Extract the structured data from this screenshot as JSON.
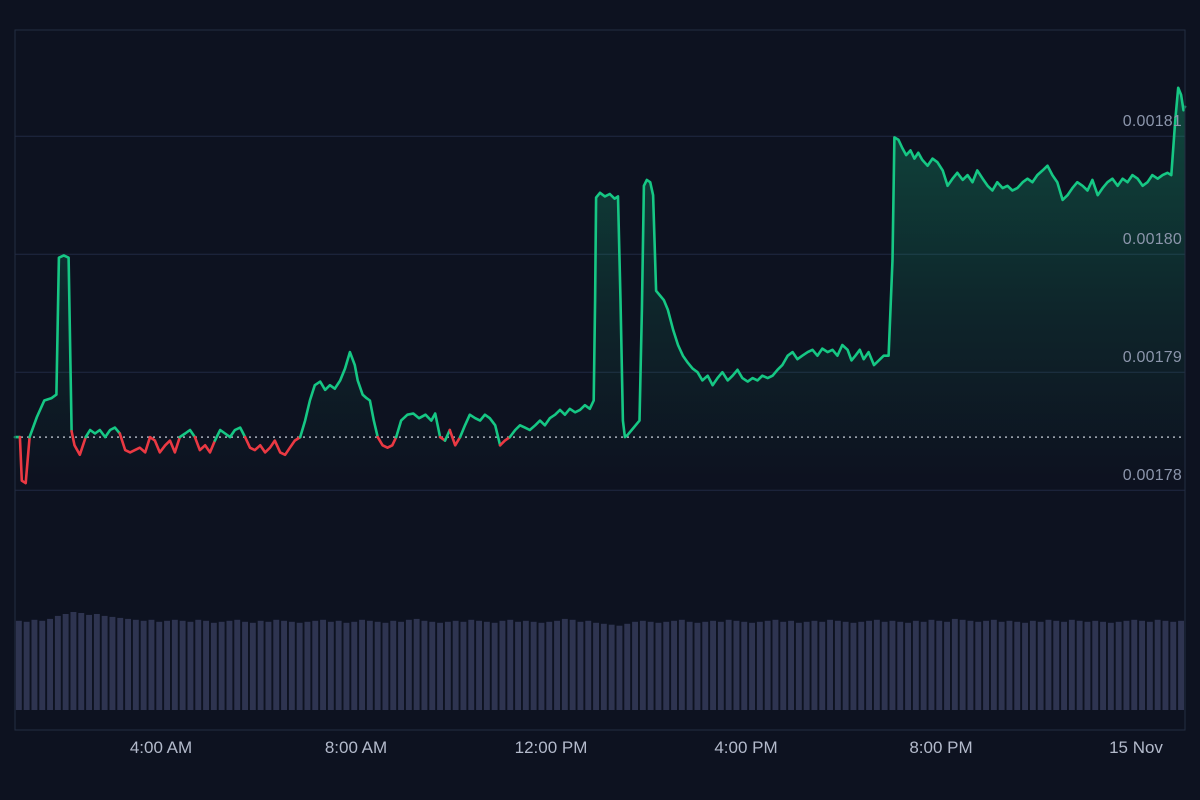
{
  "chart_data": {
    "type": "line",
    "subtype": "crypto-price-with-volume",
    "title": "",
    "baseline": 0.0017845,
    "xlim": [
      1.0,
      25.0
    ],
    "ylim": [
      0.0017751,
      0.001819
    ],
    "grid": true,
    "legend": false,
    "y_axis_side": "right",
    "y_ticks": [
      {
        "value": 0.00181,
        "label": "0.00181"
      },
      {
        "value": 0.0018,
        "label": "0.00180"
      },
      {
        "value": 0.00179,
        "label": "0.00179"
      },
      {
        "value": 0.00178,
        "label": "0.00178"
      }
    ],
    "x_ticks": [
      {
        "value": 4,
        "label": "4:00 AM"
      },
      {
        "value": 8,
        "label": "8:00 AM"
      },
      {
        "value": 12,
        "label": "12:00 PM"
      },
      {
        "value": 16,
        "label": "4:00 PM"
      },
      {
        "value": 20,
        "label": "8:00 PM"
      },
      {
        "value": 24,
        "label": "15 Nov"
      }
    ],
    "colors": {
      "background": "#0d1220",
      "up": "#16c784",
      "down": "#ea3943",
      "volume": "#2e3450",
      "grid": "#202942",
      "frame": "#242d42",
      "baseline": "#dfe5f0",
      "label_y": "#8b95ab",
      "label_x": "#b3bacb"
    },
    "series": [
      {
        "name": "price",
        "points": [
          [
            1.0,
            0.0017845
          ],
          [
            1.1,
            0.0017845
          ],
          [
            1.14,
            0.0017808
          ],
          [
            1.22,
            0.0017806
          ],
          [
            1.3,
            0.0017845
          ],
          [
            1.45,
            0.0017862
          ],
          [
            1.6,
            0.0017876
          ],
          [
            1.75,
            0.0017878
          ],
          [
            1.85,
            0.0017881
          ],
          [
            1.9,
            0.0017997
          ],
          [
            2.0,
            0.0017999
          ],
          [
            2.1,
            0.0017997
          ],
          [
            2.16,
            0.001785
          ],
          [
            2.22,
            0.0017838
          ],
          [
            2.33,
            0.001783
          ],
          [
            2.45,
            0.0017845
          ],
          [
            2.54,
            0.0017851
          ],
          [
            2.64,
            0.0017848
          ],
          [
            2.74,
            0.0017851
          ],
          [
            2.85,
            0.0017845
          ],
          [
            2.95,
            0.0017851
          ],
          [
            3.05,
            0.0017853
          ],
          [
            3.15,
            0.0017848
          ],
          [
            3.26,
            0.0017834
          ],
          [
            3.36,
            0.0017832
          ],
          [
            3.46,
            0.0017834
          ],
          [
            3.56,
            0.0017836
          ],
          [
            3.67,
            0.0017832
          ],
          [
            3.77,
            0.0017845
          ],
          [
            3.87,
            0.0017842
          ],
          [
            3.97,
            0.0017832
          ],
          [
            4.08,
            0.0017838
          ],
          [
            4.18,
            0.0017842
          ],
          [
            4.28,
            0.0017832
          ],
          [
            4.38,
            0.0017845
          ],
          [
            4.49,
            0.0017848
          ],
          [
            4.59,
            0.0017851
          ],
          [
            4.69,
            0.0017845
          ],
          [
            4.79,
            0.0017834
          ],
          [
            4.9,
            0.0017838
          ],
          [
            5.0,
            0.0017832
          ],
          [
            5.1,
            0.0017842
          ],
          [
            5.21,
            0.0017851
          ],
          [
            5.31,
            0.0017848
          ],
          [
            5.41,
            0.0017845
          ],
          [
            5.51,
            0.0017851
          ],
          [
            5.62,
            0.0017853
          ],
          [
            5.72,
            0.0017845
          ],
          [
            5.82,
            0.0017836
          ],
          [
            5.92,
            0.0017834
          ],
          [
            6.03,
            0.0017838
          ],
          [
            6.13,
            0.0017832
          ],
          [
            6.23,
            0.0017836
          ],
          [
            6.33,
            0.0017842
          ],
          [
            6.44,
            0.0017832
          ],
          [
            6.54,
            0.001783
          ],
          [
            6.64,
            0.0017836
          ],
          [
            6.74,
            0.0017842
          ],
          [
            6.85,
            0.0017845
          ],
          [
            6.95,
            0.0017859
          ],
          [
            7.05,
            0.0017876
          ],
          [
            7.15,
            0.0017889
          ],
          [
            7.26,
            0.0017892
          ],
          [
            7.36,
            0.0017885
          ],
          [
            7.46,
            0.0017889
          ],
          [
            7.56,
            0.0017886
          ],
          [
            7.67,
            0.0017893
          ],
          [
            7.77,
            0.0017903
          ],
          [
            7.87,
            0.0017917
          ],
          [
            7.97,
            0.0017906
          ],
          [
            8.03,
            0.0017893
          ],
          [
            8.13,
            0.0017881
          ],
          [
            8.21,
            0.0017878
          ],
          [
            8.28,
            0.0017876
          ],
          [
            8.36,
            0.0017859
          ],
          [
            8.44,
            0.0017845
          ],
          [
            8.54,
            0.0017838
          ],
          [
            8.64,
            0.0017836
          ],
          [
            8.74,
            0.0017838
          ],
          [
            8.82,
            0.0017845
          ],
          [
            8.92,
            0.0017859
          ],
          [
            9.05,
            0.0017864
          ],
          [
            9.17,
            0.0017865
          ],
          [
            9.29,
            0.0017861
          ],
          [
            9.42,
            0.0017864
          ],
          [
            9.54,
            0.0017859
          ],
          [
            9.62,
            0.0017865
          ],
          [
            9.72,
            0.0017845
          ],
          [
            9.82,
            0.0017842
          ],
          [
            9.92,
            0.0017851
          ],
          [
            10.03,
            0.0017838
          ],
          [
            10.13,
            0.0017845
          ],
          [
            10.23,
            0.0017855
          ],
          [
            10.33,
            0.0017864
          ],
          [
            10.44,
            0.0017861
          ],
          [
            10.54,
            0.0017859
          ],
          [
            10.64,
            0.0017864
          ],
          [
            10.74,
            0.0017861
          ],
          [
            10.85,
            0.0017855
          ],
          [
            10.95,
            0.0017838
          ],
          [
            11.05,
            0.0017842
          ],
          [
            11.15,
            0.0017845
          ],
          [
            11.26,
            0.0017851
          ],
          [
            11.36,
            0.0017855
          ],
          [
            11.46,
            0.0017853
          ],
          [
            11.56,
            0.0017851
          ],
          [
            11.67,
            0.0017855
          ],
          [
            11.77,
            0.0017859
          ],
          [
            11.87,
            0.0017855
          ],
          [
            11.97,
            0.0017861
          ],
          [
            12.08,
            0.0017864
          ],
          [
            12.18,
            0.0017868
          ],
          [
            12.28,
            0.0017864
          ],
          [
            12.38,
            0.0017869
          ],
          [
            12.49,
            0.0017866
          ],
          [
            12.59,
            0.0017868
          ],
          [
            12.69,
            0.0017872
          ],
          [
            12.79,
            0.0017869
          ],
          [
            12.87,
            0.0017876
          ],
          [
            12.9,
            0.0017961
          ],
          [
            12.92,
            0.0018048
          ],
          [
            13.0,
            0.0018052
          ],
          [
            13.1,
            0.0018049
          ],
          [
            13.2,
            0.0018051
          ],
          [
            13.3,
            0.0018047
          ],
          [
            13.37,
            0.0018049
          ],
          [
            13.42,
            0.0017961
          ],
          [
            13.47,
            0.0017859
          ],
          [
            13.51,
            0.0017845
          ],
          [
            13.57,
            0.0017847
          ],
          [
            13.65,
            0.0017851
          ],
          [
            13.73,
            0.0017855
          ],
          [
            13.81,
            0.0017859
          ],
          [
            13.86,
            0.0017953
          ],
          [
            13.9,
            0.0018058
          ],
          [
            13.96,
            0.0018063
          ],
          [
            14.03,
            0.0018061
          ],
          [
            14.09,
            0.001805
          ],
          [
            14.15,
            0.0017969
          ],
          [
            14.23,
            0.0017965
          ],
          [
            14.31,
            0.0017961
          ],
          [
            14.39,
            0.0017953
          ],
          [
            14.5,
            0.0017936
          ],
          [
            14.6,
            0.0017923
          ],
          [
            14.7,
            0.0017914
          ],
          [
            14.8,
            0.0017908
          ],
          [
            14.9,
            0.0017903
          ],
          [
            15.0,
            0.00179
          ],
          [
            15.1,
            0.0017893
          ],
          [
            15.21,
            0.0017897
          ],
          [
            15.31,
            0.0017889
          ],
          [
            15.41,
            0.0017895
          ],
          [
            15.51,
            0.00179
          ],
          [
            15.62,
            0.0017893
          ],
          [
            15.72,
            0.0017897
          ],
          [
            15.82,
            0.0017902
          ],
          [
            15.92,
            0.0017895
          ],
          [
            16.03,
            0.0017892
          ],
          [
            16.13,
            0.0017895
          ],
          [
            16.23,
            0.0017893
          ],
          [
            16.33,
            0.0017897
          ],
          [
            16.44,
            0.0017895
          ],
          [
            16.54,
            0.0017897
          ],
          [
            16.64,
            0.0017902
          ],
          [
            16.74,
            0.0017906
          ],
          [
            16.85,
            0.0017914
          ],
          [
            16.95,
            0.0017917
          ],
          [
            17.05,
            0.0017911
          ],
          [
            17.15,
            0.0017914
          ],
          [
            17.26,
            0.0017917
          ],
          [
            17.36,
            0.0017919
          ],
          [
            17.46,
            0.0017914
          ],
          [
            17.56,
            0.001792
          ],
          [
            17.67,
            0.0017917
          ],
          [
            17.77,
            0.0017919
          ],
          [
            17.87,
            0.0017914
          ],
          [
            17.97,
            0.0017923
          ],
          [
            18.08,
            0.0017919
          ],
          [
            18.16,
            0.001791
          ],
          [
            18.24,
            0.0017914
          ],
          [
            18.33,
            0.0017919
          ],
          [
            18.41,
            0.0017911
          ],
          [
            18.51,
            0.0017917
          ],
          [
            18.62,
            0.0017906
          ],
          [
            18.72,
            0.001791
          ],
          [
            18.82,
            0.0017914
          ],
          [
            18.92,
            0.0017914
          ],
          [
            19.0,
            0.0017995
          ],
          [
            19.04,
            0.0018099
          ],
          [
            19.12,
            0.0018097
          ],
          [
            19.2,
            0.001809
          ],
          [
            19.28,
            0.0018084
          ],
          [
            19.37,
            0.0018088
          ],
          [
            19.45,
            0.0018081
          ],
          [
            19.53,
            0.0018086
          ],
          [
            19.61,
            0.001808
          ],
          [
            19.72,
            0.0018075
          ],
          [
            19.82,
            0.0018081
          ],
          [
            19.92,
            0.0018078
          ],
          [
            20.03,
            0.0018071
          ],
          [
            20.13,
            0.0018058
          ],
          [
            20.23,
            0.0018064
          ],
          [
            20.33,
            0.0018069
          ],
          [
            20.44,
            0.0018063
          ],
          [
            20.54,
            0.0018067
          ],
          [
            20.64,
            0.0018061
          ],
          [
            20.74,
            0.0018071
          ],
          [
            20.85,
            0.0018064
          ],
          [
            20.95,
            0.0018058
          ],
          [
            21.05,
            0.0018054
          ],
          [
            21.15,
            0.0018061
          ],
          [
            21.26,
            0.0018056
          ],
          [
            21.36,
            0.0018058
          ],
          [
            21.46,
            0.0018054
          ],
          [
            21.56,
            0.0018056
          ],
          [
            21.67,
            0.0018061
          ],
          [
            21.77,
            0.0018064
          ],
          [
            21.87,
            0.0018061
          ],
          [
            21.97,
            0.0018067
          ],
          [
            22.08,
            0.0018071
          ],
          [
            22.18,
            0.0018075
          ],
          [
            22.28,
            0.0018067
          ],
          [
            22.38,
            0.0018061
          ],
          [
            22.49,
            0.0018046
          ],
          [
            22.59,
            0.001805
          ],
          [
            22.69,
            0.0018056
          ],
          [
            22.79,
            0.0018061
          ],
          [
            22.9,
            0.0018058
          ],
          [
            23.0,
            0.0018054
          ],
          [
            23.1,
            0.0018063
          ],
          [
            23.21,
            0.001805
          ],
          [
            23.31,
            0.0018056
          ],
          [
            23.41,
            0.0018061
          ],
          [
            23.51,
            0.0018064
          ],
          [
            23.62,
            0.0018058
          ],
          [
            23.72,
            0.0018064
          ],
          [
            23.82,
            0.0018061
          ],
          [
            23.92,
            0.0018067
          ],
          [
            24.03,
            0.0018064
          ],
          [
            24.13,
            0.0018058
          ],
          [
            24.23,
            0.0018061
          ],
          [
            24.33,
            0.0018067
          ],
          [
            24.44,
            0.0018064
          ],
          [
            24.54,
            0.0018067
          ],
          [
            24.64,
            0.0018069
          ],
          [
            24.72,
            0.0018067
          ],
          [
            24.8,
            0.0018114
          ],
          [
            24.86,
            0.0018141
          ],
          [
            24.92,
            0.0018135
          ],
          [
            24.97,
            0.0018122
          ],
          [
            25.0,
            0.0018125
          ]
        ]
      }
    ],
    "volume": [
      91,
      90,
      92,
      91,
      93,
      96,
      98,
      100,
      99,
      97,
      98,
      96,
      95,
      94,
      93,
      92,
      91,
      92,
      90,
      91,
      92,
      91,
      90,
      92,
      91,
      89,
      90,
      91,
      92,
      90,
      89,
      91,
      90,
      92,
      91,
      90,
      89,
      90,
      91,
      92,
      90,
      91,
      89,
      90,
      92,
      91,
      90,
      89,
      91,
      90,
      92,
      93,
      91,
      90,
      89,
      90,
      91,
      90,
      92,
      91,
      90,
      89,
      91,
      92,
      90,
      91,
      90,
      89,
      90,
      91,
      93,
      92,
      90,
      91,
      89,
      88,
      87,
      86,
      88,
      90,
      91,
      90,
      89,
      90,
      91,
      92,
      90,
      89,
      90,
      91,
      90,
      92,
      91,
      90,
      89,
      90,
      91,
      92,
      90,
      91,
      89,
      90,
      91,
      90,
      92,
      91,
      90,
      89,
      90,
      91,
      92,
      90,
      91,
      90,
      89,
      91,
      90,
      92,
      91,
      90,
      93,
      92,
      91,
      90,
      91,
      92,
      90,
      91,
      90,
      89,
      91,
      90,
      92,
      91,
      90,
      92,
      91,
      90,
      91,
      90,
      89,
      90,
      91,
      92,
      91,
      90,
      92,
      91,
      90,
      91
    ]
  }
}
